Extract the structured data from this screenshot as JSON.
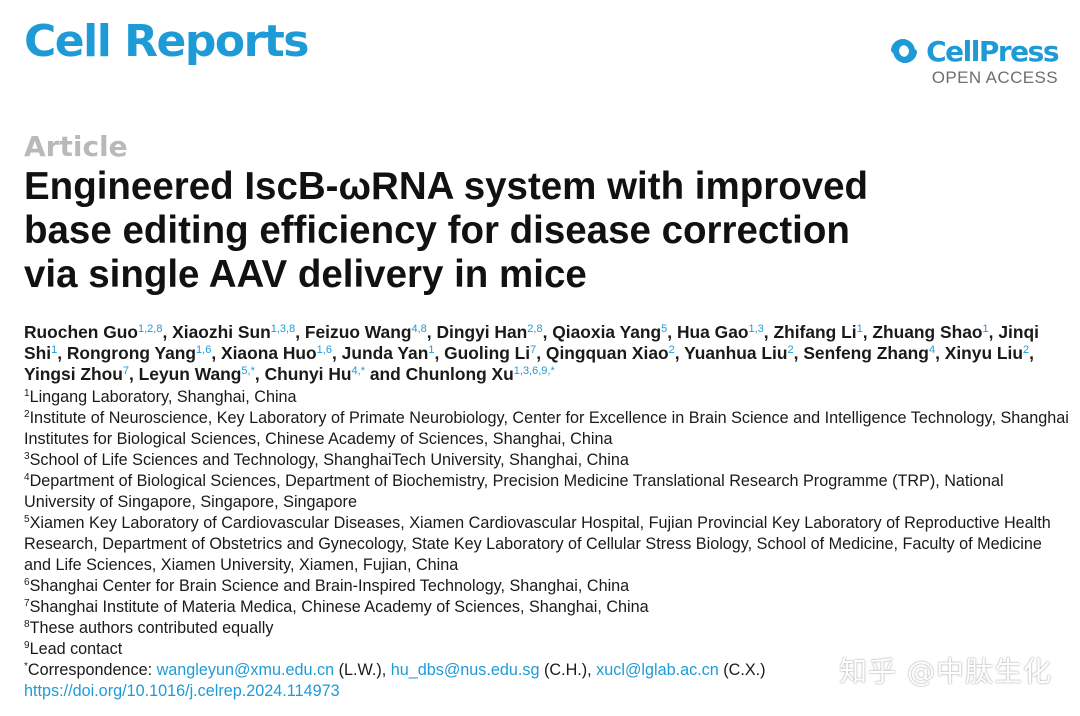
{
  "journal": "Cell Reports",
  "publisher": {
    "name": "CellPress",
    "access": "OPEN ACCESS"
  },
  "article_type": "Article",
  "title_lines": [
    "Engineered IscB-ωRNA system with improved",
    "base editing efficiency for disease correction",
    "via single AAV delivery in mice"
  ],
  "authors": [
    {
      "name": "Ruochen Guo",
      "sup": "1,2,8"
    },
    {
      "name": "Xiaozhi Sun",
      "sup": "1,3,8"
    },
    {
      "name": "Feizuo Wang",
      "sup": "4,8"
    },
    {
      "name": "Dingyi Han",
      "sup": "2,8"
    },
    {
      "name": "Qiaoxia Yang",
      "sup": "5"
    },
    {
      "name": "Hua Gao",
      "sup": "1,3"
    },
    {
      "name": "Zhifang Li",
      "sup": "1"
    },
    {
      "name": "Zhuang Shao",
      "sup": "1"
    },
    {
      "name": "Jinqi Shi",
      "sup": "1"
    },
    {
      "name": "Rongrong Yang",
      "sup": "1,6"
    },
    {
      "name": "Xiaona Huo",
      "sup": "1,6"
    },
    {
      "name": "Junda Yan",
      "sup": "1"
    },
    {
      "name": "Guoling Li",
      "sup": "7"
    },
    {
      "name": "Qingquan Xiao",
      "sup": "2"
    },
    {
      "name": "Yuanhua Liu",
      "sup": "2"
    },
    {
      "name": "Senfeng Zhang",
      "sup": "4"
    },
    {
      "name": "Xinyu Liu",
      "sup": "2"
    },
    {
      "name": "Yingsi Zhou",
      "sup": "7"
    },
    {
      "name": "Leyun Wang",
      "sup": "5,*"
    },
    {
      "name": "Chunyi Hu",
      "sup": "4,*"
    },
    {
      "name": "Chunlong Xu",
      "sup": "1,3,6,9,*"
    }
  ],
  "author_conjunction": "and",
  "affiliations": [
    {
      "num": "1",
      "text": "Lingang Laboratory, Shanghai, China"
    },
    {
      "num": "2",
      "text": "Institute of Neuroscience, Key Laboratory of Primate Neurobiology, Center for Excellence in Brain Science and Intelligence Technology, Shanghai Institutes for Biological Sciences, Chinese Academy of Sciences, Shanghai, China"
    },
    {
      "num": "3",
      "text": "School of Life Sciences and Technology, ShanghaiTech University, Shanghai, China"
    },
    {
      "num": "4",
      "text": "Department of Biological Sciences, Department of Biochemistry, Precision Medicine Translational Research Programme (TRP), National University of Singapore, Singapore, Singapore"
    },
    {
      "num": "5",
      "text": "Xiamen Key Laboratory of Cardiovascular Diseases, Xiamen Cardiovascular Hospital, Fujian Provincial Key Laboratory of Reproductive Health Research, Department of Obstetrics and Gynecology, State Key Laboratory of Cellular Stress Biology, School of Medicine, Faculty of Medicine and Life Sciences, Xiamen University, Xiamen, Fujian, China"
    },
    {
      "num": "6",
      "text": "Shanghai Center for Brain Science and Brain-Inspired Technology, Shanghai, China"
    },
    {
      "num": "7",
      "text": "Shanghai Institute of Materia Medica, Chinese Academy of Sciences, Shanghai, China"
    },
    {
      "num": "8",
      "text": "These authors contributed equally"
    },
    {
      "num": "9",
      "text": "Lead contact"
    }
  ],
  "correspondence": {
    "mark": "*",
    "label": "Correspondence: ",
    "entries": [
      {
        "email": "wangleyun@xmu.edu.cn",
        "initials": " (L.W.), "
      },
      {
        "email": "hu_dbs@nus.edu.sg",
        "initials": " (C.H.), "
      },
      {
        "email": "xucl@lglab.ac.cn",
        "initials": " (C.X.)"
      }
    ]
  },
  "doi": "https://doi.org/10.1016/j.celrep.2024.114973",
  "watermark": "知乎 @中肽生化",
  "colors": {
    "brand": "#1e9bd7",
    "article_type": "#b9b9b9",
    "text": "#1a1a1a"
  }
}
